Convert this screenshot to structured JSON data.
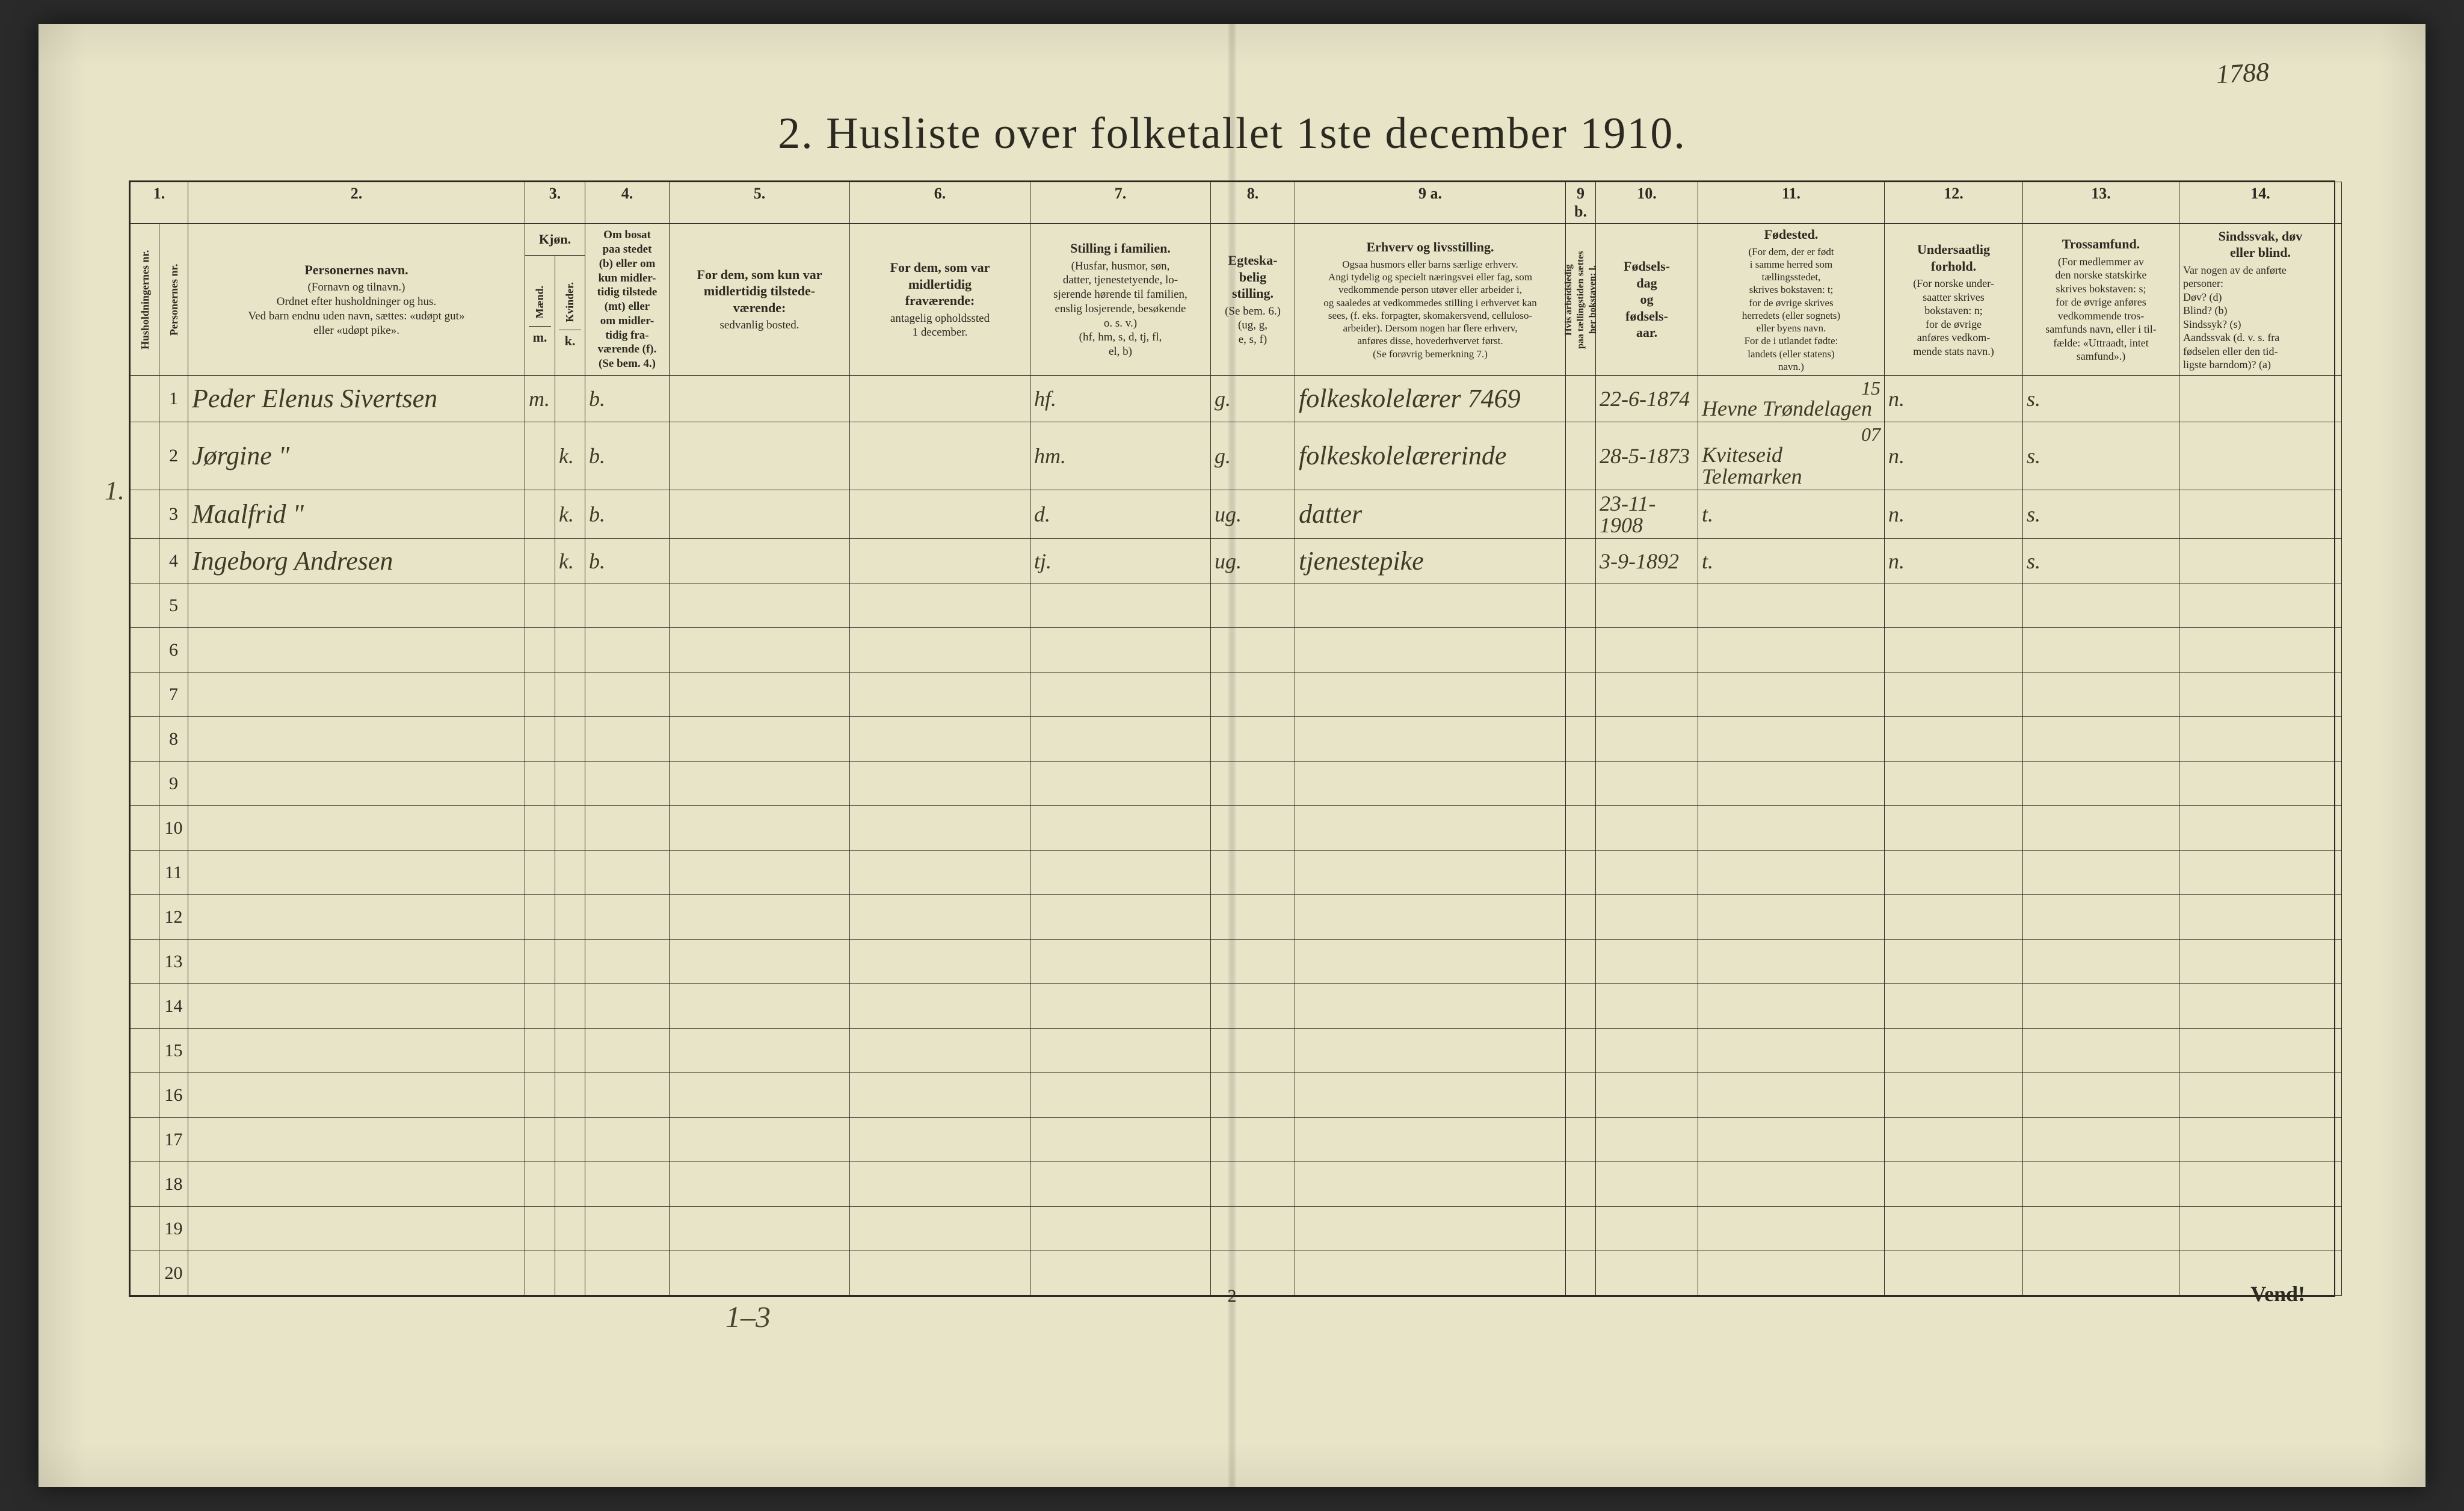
{
  "corner_number": "1788",
  "title": "2.  Husliste over folketallet 1ste december 1910.",
  "page_number": "2",
  "vend": "Vend!",
  "below_table_note": "1–3",
  "left_margin": "1.",
  "table": {
    "col_numbers": [
      "1.",
      "2.",
      "3.",
      "4.",
      "5.",
      "6.",
      "7.",
      "8.",
      "9 a.",
      "9 b.",
      "10.",
      "11.",
      "12.",
      "13.",
      "14."
    ],
    "headers": {
      "h1a": "Husholdningernes nr.",
      "h1b": "Personernes nr.",
      "h2_main": "Personernes navn.",
      "h2_sub": "(Fornavn og tilnavn.)\nOrdnet efter husholdninger og hus.\nVed barn endnu uden navn, sættes: «udøpt gut»\neller «udøpt pike».",
      "h3_main": "Kjøn.",
      "h3a": "Mænd.",
      "h3b": "Kvinder.",
      "h3_mk_m": "m.",
      "h3_mk_k": "k.",
      "h4_main": "Om bosat\npaa stedet\n(b) eller om\nkun midler-\ntidig tilstede\n(mt) eller\nom midler-\ntidig fra-\nværende (f).\n(Se bem. 4.)",
      "h5_main": "For dem, som kun var\nmidlertidig tilstede-\nværende:",
      "h5_sub": "sedvanlig bosted.",
      "h6_main": "For dem, som var\nmidlertidig\nfraværende:",
      "h6_sub": "antagelig opholdssted\n1 december.",
      "h7_main": "Stilling i familien.",
      "h7_sub": "(Husfar, husmor, søn,\ndatter, tjenestetyende, lo-\nsjerende hørende til familien,\nenslig losjerende, besøkende\no. s. v.)\n(hf, hm, s, d, tj, fl,\nel, b)",
      "h8_main": "Egteska-\nbelig\nstilling.",
      "h8_sub": "(Se bem. 6.)\n(ug, g,\ne, s, f)",
      "h9a_main": "Erhverv og livsstilling.",
      "h9a_sub": "Ogsaa husmors eller barns særlige erhverv.\nAngi tydelig og specielt næringsvei eller fag, som\nvedkommende person utøver eller arbeider i,\nog saaledes at vedkommedes stilling i erhvervet kan\nsees, (f. eks. forpagter, skomakersvend, celluloso-\narbeider). Dersom nogen har flere erhverv,\nanføres disse, hovederhvervet først.\n(Se forøvrig bemerkning 7.)",
      "h9b": "Hvis arbeidsledig\npaa tællingstiden sættes\nher bokstaven: l.",
      "h10_main": "Fødsels-\ndag\nog\nfødsels-\naar.",
      "h11_main": "Fødested.",
      "h11_sub": "(For dem, der er født\ni samme herred som\ntællingsstedet,\nskrives bokstaven: t;\nfor de øvrige skrives\nherredets (eller sognets)\neller byens navn.\nFor de i utlandet fødte:\nlandets (eller statens)\nnavn.)",
      "h12_main": "Undersaatlig\nforhold.",
      "h12_sub": "(For norske under-\nsaatter skrives\nbokstaven: n;\nfor de øvrige\nanføres vedkom-\nmende stats navn.)",
      "h13_main": "Trossamfund.",
      "h13_sub": "(For medlemmer av\nden norske statskirke\nskrives bokstaven: s;\nfor de øvrige anføres\nvedkommende tros-\nsamfunds navn, eller i til-\nfælde: «Uttraadt, intet\nsamfund».)",
      "h14_main": "Sindssvak, døv\neller blind.",
      "h14_sub": "Var nogen av de anførte\npersoner:\nDøv?        (d)\nBlind?      (b)\nSindssyk? (s)\nAandssvak (d. v. s. fra\nfødselen eller den tid-\nligste barndom)? (a)"
    },
    "rows": [
      {
        "n": "1",
        "name": "Peder Elenus Sivertsen",
        "m": "m.",
        "k": "",
        "b": "b.",
        "c5": "",
        "c6": "",
        "fam": "hf.",
        "eg": "g.",
        "erv": "folkeskolelærer   7469",
        "l": "",
        "fd": "22-6-1874",
        "fs": "Hevne Trøndelagen",
        "c11extra": "15",
        "us": "n.",
        "ts": "s.",
        "c14": ""
      },
      {
        "n": "2",
        "name": "Jørgine              \"",
        "m": "",
        "k": "k.",
        "b": "b.",
        "c5": "",
        "c6": "",
        "fam": "hm.",
        "eg": "g.",
        "erv": "folkeskolelærerinde",
        "l": "",
        "fd": "28-5-1873",
        "fs": "Kviteseid Telemarken",
        "c11extra": "07",
        "us": "n.",
        "ts": "s.",
        "c14": ""
      },
      {
        "n": "3",
        "name": "Maalfrid            \"",
        "m": "",
        "k": "k.",
        "b": "b.",
        "c5": "",
        "c6": "",
        "fam": "d.",
        "eg": "ug.",
        "erv": "datter",
        "l": "",
        "fd": "23-11-1908",
        "fs": "t.",
        "c11extra": "",
        "us": "n.",
        "ts": "s.",
        "c14": ""
      },
      {
        "n": "4",
        "name": "Ingeborg   Andresen",
        "m": "",
        "k": "k.",
        "b": "b.",
        "c5": "",
        "c6": "",
        "fam": "tj.",
        "eg": "ug.",
        "erv": "tjenestepike",
        "l": "",
        "fd": "3-9-1892",
        "fs": "t.",
        "c11extra": "",
        "us": "n.",
        "ts": "s.",
        "c14": ""
      },
      {
        "n": "5"
      },
      {
        "n": "6"
      },
      {
        "n": "7"
      },
      {
        "n": "8"
      },
      {
        "n": "9"
      },
      {
        "n": "10"
      },
      {
        "n": "11"
      },
      {
        "n": "12"
      },
      {
        "n": "13"
      },
      {
        "n": "14"
      },
      {
        "n": "15"
      },
      {
        "n": "16"
      },
      {
        "n": "17"
      },
      {
        "n": "18"
      },
      {
        "n": "19"
      },
      {
        "n": "20"
      }
    ],
    "colors": {
      "paper": "#e8e4c8",
      "ink": "#2c2a20",
      "hand": "#3f3a28"
    }
  }
}
